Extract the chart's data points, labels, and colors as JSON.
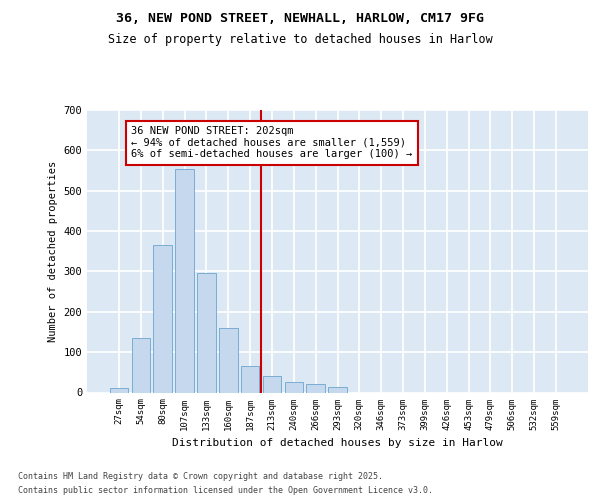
{
  "title_line1": "36, NEW POND STREET, NEWHALL, HARLOW, CM17 9FG",
  "title_line2": "Size of property relative to detached houses in Harlow",
  "xlabel": "Distribution of detached houses by size in Harlow",
  "ylabel": "Number of detached properties",
  "bar_color": "#c5d8ee",
  "bar_edge_color": "#7aadd4",
  "background_color": "#dce9f5",
  "grid_color": "#ffffff",
  "fig_bg_color": "#ffffff",
  "categories": [
    "27sqm",
    "54sqm",
    "80sqm",
    "107sqm",
    "133sqm",
    "160sqm",
    "187sqm",
    "213sqm",
    "240sqm",
    "266sqm",
    "293sqm",
    "320sqm",
    "346sqm",
    "373sqm",
    "399sqm",
    "426sqm",
    "453sqm",
    "479sqm",
    "506sqm",
    "532sqm",
    "559sqm"
  ],
  "values": [
    10,
    135,
    365,
    555,
    295,
    160,
    65,
    42,
    27,
    22,
    14,
    0,
    0,
    0,
    0,
    0,
    0,
    0,
    0,
    0,
    0
  ],
  "ylim": [
    0,
    700
  ],
  "yticks": [
    0,
    100,
    200,
    300,
    400,
    500,
    600,
    700
  ],
  "vline_x": 6.5,
  "marker_label_line1": "36 NEW POND STREET: 202sqm",
  "marker_label_line2": "← 94% of detached houses are smaller (1,559)",
  "marker_label_line3": "6% of semi-detached houses are larger (100) →",
  "vline_color": "#cc0000",
  "annotation_box_facecolor": "#ffffff",
  "annotation_box_edgecolor": "#cc0000",
  "footer_line1": "Contains HM Land Registry data © Crown copyright and database right 2025.",
  "footer_line2": "Contains public sector information licensed under the Open Government Licence v3.0."
}
